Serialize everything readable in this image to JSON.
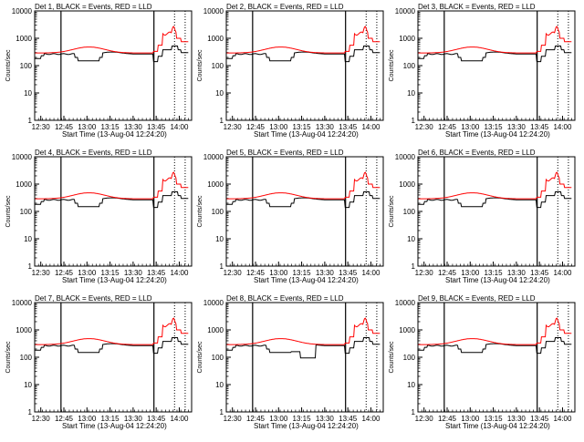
{
  "chart_data": [
    {
      "type": "line",
      "title": "Det 1, BLACK = Events, RED = LLD",
      "xlabel": "Start Time (13-Aug-04 12:24:20)",
      "ylabel": "Counts/sec",
      "ylog": true,
      "ylim": [
        1,
        10000
      ],
      "xticks": [
        "12:30",
        "12:45",
        "13:00",
        "13:15",
        "13:30",
        "13:45",
        "14:00"
      ],
      "yticks": [
        "1",
        "10",
        "100",
        "1000",
        "10000"
      ],
      "grid": false,
      "legend": "none",
      "series": [
        {
          "color": "#000000",
          "variant": "events"
        },
        {
          "color": "#ff0000",
          "variant": "lld"
        }
      ]
    },
    {
      "type": "line",
      "title": "Det 2, BLACK = Events, RED = LLD",
      "xlabel": "Start Time (13-Aug-04 12:24:20)",
      "ylabel": "Counts/sec",
      "ylog": true,
      "ylim": [
        1,
        10000
      ],
      "xticks": [
        "12:30",
        "12:45",
        "13:00",
        "13:15",
        "13:30",
        "13:45",
        "14:00"
      ],
      "yticks": [
        "1",
        "10",
        "100",
        "1000",
        "10000"
      ],
      "grid": false,
      "legend": "none",
      "series": [
        {
          "color": "#000000",
          "variant": "events"
        },
        {
          "color": "#ff0000",
          "variant": "lld"
        }
      ]
    },
    {
      "type": "line",
      "title": "Det 3, BLACK = Events, RED = LLD",
      "xlabel": "Start Time (13-Aug-04 12:24:20)",
      "ylabel": "Counts/sec",
      "ylog": true,
      "ylim": [
        1,
        10000
      ],
      "xticks": [
        "12:30",
        "12:45",
        "13:00",
        "13:15",
        "13:30",
        "13:45",
        "14:00"
      ],
      "yticks": [
        "1",
        "10",
        "100",
        "1000",
        "10000"
      ],
      "grid": false,
      "legend": "none",
      "series": [
        {
          "color": "#000000",
          "variant": "events"
        },
        {
          "color": "#ff0000",
          "variant": "lld"
        }
      ]
    },
    {
      "type": "line",
      "title": "Det 4, BLACK = Events, RED = LLD",
      "xlabel": "Start Time (13-Aug-04 12:24:20)",
      "ylabel": "Counts/sec",
      "ylog": true,
      "ylim": [
        1,
        10000
      ],
      "xticks": [
        "12:30",
        "12:45",
        "13:00",
        "13:15",
        "13:30",
        "13:45",
        "14:00"
      ],
      "yticks": [
        "1",
        "10",
        "100",
        "1000",
        "10000"
      ],
      "grid": false,
      "legend": "none",
      "series": [
        {
          "color": "#000000",
          "variant": "events"
        },
        {
          "color": "#ff0000",
          "variant": "lld"
        }
      ]
    },
    {
      "type": "line",
      "title": "Det 5, BLACK = Events, RED = LLD",
      "xlabel": "Start Time (13-Aug-04 12:24:20)",
      "ylabel": "Counts/sec",
      "ylog": true,
      "ylim": [
        1,
        10000
      ],
      "xticks": [
        "12:30",
        "12:45",
        "13:00",
        "13:15",
        "13:30",
        "13:45",
        "14:00"
      ],
      "yticks": [
        "1",
        "10",
        "100",
        "1000",
        "10000"
      ],
      "grid": false,
      "legend": "none",
      "series": [
        {
          "color": "#000000",
          "variant": "events"
        },
        {
          "color": "#ff0000",
          "variant": "lld"
        }
      ]
    },
    {
      "type": "line",
      "title": "Det 6, BLACK = Events, RED = LLD",
      "xlabel": "Start Time (13-Aug-04 12:24:20)",
      "ylabel": "Counts/sec",
      "ylog": true,
      "ylim": [
        1,
        10000
      ],
      "xticks": [
        "12:30",
        "12:45",
        "13:00",
        "13:15",
        "13:30",
        "13:45",
        "14:00"
      ],
      "yticks": [
        "1",
        "10",
        "100",
        "1000",
        "10000"
      ],
      "grid": false,
      "legend": "none",
      "series": [
        {
          "color": "#000000",
          "variant": "events"
        },
        {
          "color": "#ff0000",
          "variant": "lld"
        }
      ]
    },
    {
      "type": "line",
      "title": "Det 7, BLACK = Events, RED = LLD",
      "xlabel": "Start Time (13-Aug-04 12:24:20)",
      "ylabel": "Counts/sec",
      "ylog": true,
      "ylim": [
        1,
        10000
      ],
      "xticks": [
        "12:30",
        "12:45",
        "13:00",
        "13:15",
        "13:30",
        "13:45",
        "14:00"
      ],
      "yticks": [
        "1",
        "10",
        "100",
        "1000",
        "10000"
      ],
      "grid": false,
      "legend": "none",
      "series": [
        {
          "color": "#000000",
          "variant": "events"
        },
        {
          "color": "#ff0000",
          "variant": "lld"
        }
      ]
    },
    {
      "type": "line",
      "title": "Det 8, BLACK = Events, RED = LLD",
      "xlabel": "Start Time (13-Aug-04 12:24:20)",
      "ylabel": "Counts/sec",
      "ylog": true,
      "ylim": [
        1,
        10000
      ],
      "xticks": [
        "12:30",
        "12:45",
        "13:00",
        "13:15",
        "13:30",
        "13:45",
        "14:00"
      ],
      "yticks": [
        "1",
        "10",
        "100",
        "1000",
        "10000"
      ],
      "grid": false,
      "legend": "none",
      "series": [
        {
          "color": "#000000",
          "variant": "events-det8"
        },
        {
          "color": "#ff0000",
          "variant": "lld"
        }
      ]
    },
    {
      "type": "line",
      "title": "Det 9, BLACK = Events, RED = LLD",
      "xlabel": "Start Time (13-Aug-04 12:24:20)",
      "ylabel": "Counts/sec",
      "ylog": true,
      "ylim": [
        1,
        10000
      ],
      "xticks": [
        "12:30",
        "12:45",
        "13:00",
        "13:15",
        "13:30",
        "13:45",
        "14:00"
      ],
      "yticks": [
        "1",
        "10",
        "100",
        "1000",
        "10000"
      ],
      "grid": false,
      "legend": "none",
      "series": [
        {
          "color": "#000000",
          "variant": "events"
        },
        {
          "color": "#ff0000",
          "variant": "lld"
        }
      ]
    }
  ]
}
